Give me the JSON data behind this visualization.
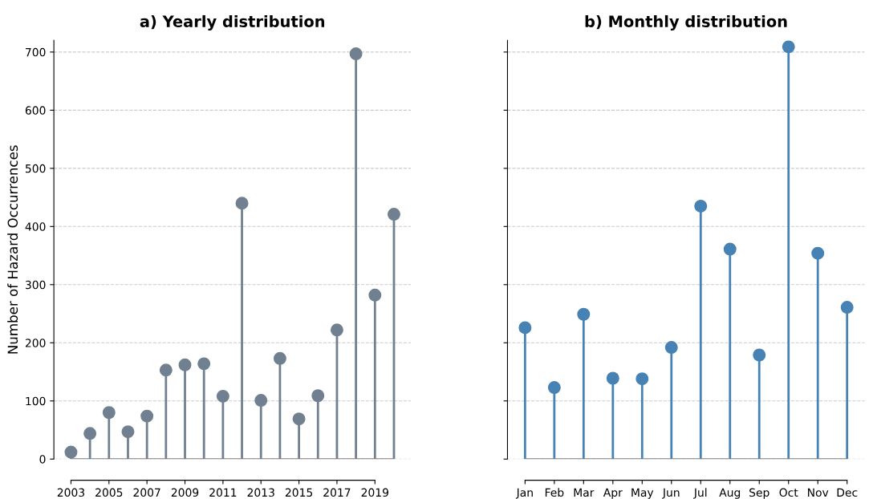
{
  "chart_data": [
    {
      "type": "lollipop",
      "title": "a) Yearly distribution",
      "ylabel": "Number of Hazard Occurrences",
      "x": [
        2003,
        2004,
        2005,
        2006,
        2007,
        2008,
        2009,
        2010,
        2011,
        2012,
        2013,
        2014,
        2015,
        2016,
        2017,
        2018,
        2019,
        2020
      ],
      "series": [
        {
          "color": "#708090",
          "values": [
            12,
            44,
            80,
            47,
            74,
            153,
            162,
            164,
            108,
            440,
            101,
            173,
            69,
            109,
            222,
            697,
            282,
            421
          ]
        }
      ],
      "xlim": [
        2002.1,
        2020.9
      ],
      "xticks": [
        2003,
        2005,
        2007,
        2009,
        2011,
        2013,
        2015,
        2017,
        2019
      ],
      "ylim": [
        0,
        720
      ],
      "yticks": [
        0,
        100,
        200,
        300,
        400,
        500,
        600,
        700
      ],
      "grid": "y",
      "marker": "circle"
    },
    {
      "type": "lollipop",
      "title": "b) Monthly distribution",
      "categories": [
        "Jan",
        "Feb",
        "Mar",
        "Apr",
        "May",
        "Jun",
        "Jul",
        "Aug",
        "Sep",
        "Oct",
        "Nov",
        "Dec"
      ],
      "series": [
        {
          "color": "#4682b4",
          "values": [
            226,
            123,
            249,
            139,
            138,
            192,
            435,
            361,
            179,
            709,
            354,
            261
          ]
        }
      ],
      "ylim": [
        0,
        720
      ],
      "yticks": [
        0,
        100,
        200,
        300,
        400,
        500,
        600,
        700
      ],
      "grid": "y",
      "marker": "circle",
      "tick_labels": "x"
    }
  ]
}
